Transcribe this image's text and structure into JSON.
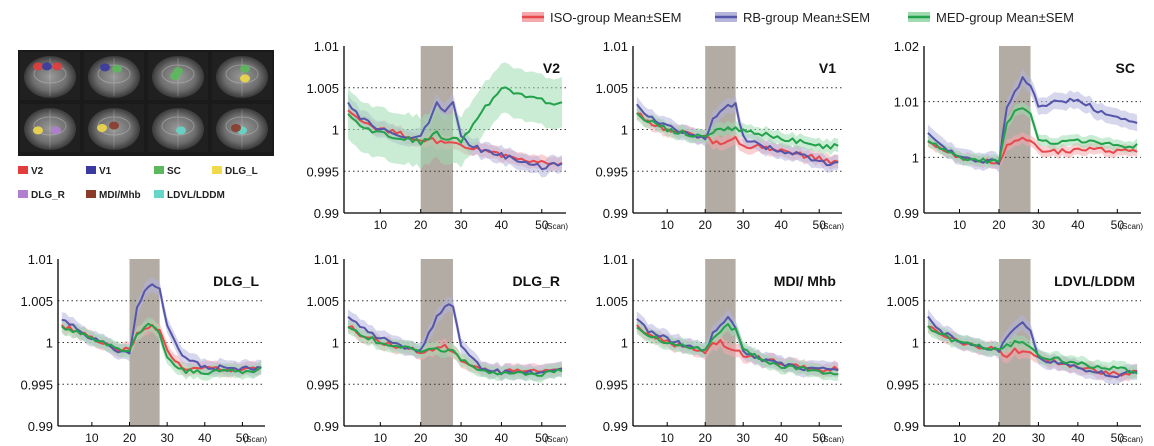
{
  "legend": [
    {
      "label": "ISO-group Mean±SEM",
      "color": "#e8474c",
      "band": "#f5a9ad"
    },
    {
      "label": "RB-group Mean±SEM",
      "color": "#5555aa",
      "band": "#b5b5dc"
    },
    {
      "label": "MED-group Mean±SEM",
      "color": "#22a24a",
      "band": "#9fdab0"
    }
  ],
  "roi_legend": [
    {
      "label": "V2",
      "color": "#e23c3c"
    },
    {
      "label": "V1",
      "color": "#3a3aa0"
    },
    {
      "label": "SC",
      "color": "#5cb85c"
    },
    {
      "label": "DLG_L",
      "color": "#f0d94a"
    },
    {
      "label": "DLG_R",
      "color": "#b07fd0"
    },
    {
      "label": "MDI/Mhb",
      "color": "#8a3b2a"
    },
    {
      "label": "LDVL/LDDM",
      "color": "#66d6c9"
    }
  ],
  "chart_data": [
    {
      "type": "line",
      "title": "V2",
      "xunit": "(Scan)",
      "ylim": [
        0.99,
        1.01
      ],
      "yticks": [
        "0.99",
        "0.995",
        "1",
        "1.005",
        "1.01"
      ],
      "xlim": [
        1,
        56
      ],
      "xticks": [
        10,
        20,
        30,
        40,
        50
      ],
      "stimulus": [
        20,
        28
      ],
      "grid": "dotted-horizontal",
      "x": [
        2,
        5,
        10,
        15,
        20,
        22,
        24,
        26,
        28,
        30,
        35,
        40,
        45,
        50,
        55
      ],
      "series": [
        {
          "name": "ISO-group Mean±SEM",
          "values": [
            1.002,
            1.001,
            1.0,
            0.9995,
            0.9985,
            0.999,
            0.9985,
            0.9985,
            0.9985,
            0.998,
            0.9975,
            0.997,
            0.9965,
            0.996,
            0.9958
          ],
          "sem": 0.0008
        },
        {
          "name": "RB-group Mean±SEM",
          "values": [
            1.003,
            1.0015,
            1.0,
            0.999,
            0.999,
            1.001,
            1.003,
            1.002,
            1.003,
            0.999,
            0.9975,
            0.997,
            0.996,
            0.9955,
            0.996
          ],
          "sem": 0.001
        },
        {
          "name": "MED-group Mean±SEM",
          "values": [
            1.002,
            1.0005,
            0.9995,
            0.999,
            0.9985,
            0.999,
            0.9995,
            0.999,
            0.999,
            0.9985,
            1.002,
            1.005,
            1.004,
            1.0035,
            1.003
          ],
          "sem": 0.003
        }
      ]
    },
    {
      "type": "line",
      "title": "V1",
      "xunit": "(Scan)",
      "ylim": [
        0.99,
        1.01
      ],
      "yticks": [
        "0.99",
        "0.995",
        "1",
        "1.005",
        "1.01"
      ],
      "xlim": [
        1,
        56
      ],
      "xticks": [
        10,
        20,
        30,
        40,
        50
      ],
      "stimulus": [
        20,
        28
      ],
      "grid": "dotted-horizontal",
      "x": [
        2,
        5,
        10,
        15,
        20,
        22,
        24,
        26,
        28,
        30,
        35,
        40,
        45,
        50,
        55
      ],
      "series": [
        {
          "name": "ISO-group Mean±SEM",
          "values": [
            1.002,
            1.001,
            1.0,
            0.9995,
            0.999,
            0.9985,
            0.9985,
            0.9985,
            0.999,
            0.998,
            0.998,
            0.9975,
            0.997,
            0.9965,
            0.996
          ],
          "sem": 0.0008
        },
        {
          "name": "RB-group Mean±SEM",
          "values": [
            1.003,
            1.0015,
            1.0005,
            0.9995,
            0.999,
            1.001,
            1.002,
            1.003,
            1.003,
            0.999,
            0.998,
            0.9975,
            0.997,
            0.996,
            0.9958
          ],
          "sem": 0.0009
        },
        {
          "name": "MED-group Mean±SEM",
          "values": [
            1.002,
            1.001,
            1.0,
            0.9995,
            0.999,
            0.9995,
            1.0,
            1.0,
            1.0,
            1.0,
            0.9995,
            0.999,
            0.9985,
            0.998,
            0.998
          ],
          "sem": 0.0008
        }
      ]
    },
    {
      "type": "line",
      "title": "SC",
      "xunit": "(Scan)",
      "ylim": [
        0.99,
        1.02
      ],
      "yticks": [
        "0.99",
        "1",
        "1.01",
        "1.02"
      ],
      "xlim": [
        1,
        56
      ],
      "xticks": [
        10,
        20,
        30,
        40,
        50
      ],
      "stimulus": [
        20,
        28
      ],
      "grid": "dotted-horizontal",
      "x": [
        2,
        5,
        10,
        15,
        20,
        22,
        24,
        26,
        28,
        30,
        35,
        40,
        45,
        50,
        55
      ],
      "series": [
        {
          "name": "ISO-group Mean±SEM",
          "values": [
            1.003,
            1.0015,
            1.0,
            0.9995,
            0.999,
            1.002,
            1.003,
            1.0035,
            1.003,
            1.0015,
            1.001,
            1.0015,
            1.0015,
            1.001,
            1.001
          ],
          "sem": 0.001
        },
        {
          "name": "RB-group Mean±SEM",
          "values": [
            1.004,
            1.002,
            1.0,
            0.9995,
            0.999,
            1.009,
            1.012,
            1.014,
            1.013,
            1.009,
            1.01,
            1.0105,
            1.0085,
            1.007,
            1.006
          ],
          "sem": 0.0015
        },
        {
          "name": "MED-group Mean±SEM",
          "values": [
            1.003,
            1.0015,
            1.0,
            0.9995,
            0.999,
            1.006,
            1.008,
            1.0085,
            1.008,
            1.003,
            1.0025,
            1.003,
            1.0025,
            1.002,
            1.002
          ],
          "sem": 0.001
        }
      ]
    },
    {
      "type": "line",
      "title": "DLG_L",
      "xunit": "(Scan)",
      "ylim": [
        0.99,
        1.01
      ],
      "yticks": [
        "0.99",
        "0.995",
        "1",
        "1.005",
        "1.01"
      ],
      "xlim": [
        1,
        56
      ],
      "xticks": [
        10,
        20,
        30,
        40,
        50
      ],
      "stimulus": [
        20,
        28
      ],
      "grid": "dotted-horizontal",
      "x": [
        2,
        5,
        10,
        15,
        20,
        22,
        24,
        26,
        28,
        30,
        33,
        35,
        40,
        45,
        50,
        55
      ],
      "series": [
        {
          "name": "ISO-group Mean±SEM",
          "values": [
            1.002,
            1.0015,
            1.0005,
            0.9995,
            0.999,
            1.001,
            1.0015,
            1.002,
            1.0015,
            0.999,
            0.9975,
            0.997,
            0.9968,
            0.9968,
            0.9966,
            0.9968
          ],
          "sem": 0.0008
        },
        {
          "name": "RB-group Mean±SEM",
          "values": [
            1.003,
            1.002,
            1.0005,
            0.9995,
            0.9985,
            1.004,
            1.006,
            1.007,
            1.0065,
            1.002,
            0.999,
            0.998,
            0.997,
            0.997,
            0.9968,
            0.997
          ],
          "sem": 0.0009
        },
        {
          "name": "MED-group Mean±SEM",
          "values": [
            1.002,
            1.0015,
            1.0005,
            0.9995,
            0.999,
            1.001,
            1.002,
            1.002,
            1.001,
            0.9985,
            0.997,
            0.9965,
            0.9965,
            0.9965,
            0.9965,
            0.9968
          ],
          "sem": 0.0008
        }
      ]
    },
    {
      "type": "line",
      "title": "DLG_R",
      "xunit": "(Scan)",
      "ylim": [
        0.99,
        1.01
      ],
      "yticks": [
        "0.99",
        "0.995",
        "1",
        "1.005",
        "1.01"
      ],
      "xlim": [
        1,
        56
      ],
      "xticks": [
        10,
        20,
        30,
        40,
        50
      ],
      "stimulus": [
        20,
        28
      ],
      "grid": "dotted-horizontal",
      "x": [
        2,
        5,
        10,
        15,
        20,
        22,
        24,
        26,
        28,
        30,
        33,
        35,
        40,
        45,
        50,
        55
      ],
      "series": [
        {
          "name": "ISO-group Mean±SEM",
          "values": [
            1.002,
            1.001,
            1.0,
            0.9995,
            0.999,
            0.999,
            0.9992,
            0.9995,
            0.999,
            0.998,
            0.997,
            0.9968,
            0.9965,
            0.9965,
            0.9965,
            0.9967
          ],
          "sem": 0.0008
        },
        {
          "name": "RB-group Mean±SEM",
          "values": [
            1.003,
            1.002,
            1.0005,
            0.9995,
            0.999,
            1.001,
            1.003,
            1.0045,
            1.0045,
            0.9995,
            0.998,
            0.997,
            0.9965,
            0.9965,
            0.9965,
            0.9967
          ],
          "sem": 0.0009
        },
        {
          "name": "MED-group Mean±SEM",
          "values": [
            1.002,
            1.001,
            1.0,
            0.9995,
            0.999,
            0.999,
            0.9992,
            0.9992,
            0.999,
            0.998,
            0.997,
            0.9965,
            0.9962,
            0.9962,
            0.9962,
            0.9966
          ],
          "sem": 0.0008
        }
      ]
    },
    {
      "type": "line",
      "title": "MDI/ Mhb",
      "xunit": "(Scan)",
      "ylim": [
        0.99,
        1.01
      ],
      "yticks": [
        "0.99",
        "0.995",
        "1",
        "1.005",
        "1.01"
      ],
      "xlim": [
        1,
        56
      ],
      "xticks": [
        10,
        20,
        30,
        40,
        50
      ],
      "stimulus": [
        20,
        28
      ],
      "grid": "dotted-horizontal",
      "x": [
        2,
        5,
        10,
        15,
        20,
        22,
        24,
        26,
        28,
        30,
        35,
        40,
        45,
        50,
        55
      ],
      "series": [
        {
          "name": "ISO-group Mean±SEM",
          "values": [
            1.002,
            1.001,
            1.0,
            0.9995,
            0.999,
            1.0,
            1.0,
            0.9995,
            0.999,
            0.9985,
            0.998,
            0.9975,
            0.997,
            0.9968,
            0.9968
          ],
          "sem": 0.0008
        },
        {
          "name": "RB-group Mean±SEM",
          "values": [
            1.003,
            1.0015,
            1.0005,
            0.9995,
            0.999,
            1.001,
            1.002,
            1.003,
            1.002,
            0.999,
            0.998,
            0.9975,
            0.997,
            0.9968,
            0.9965
          ],
          "sem": 0.0009
        },
        {
          "name": "MED-group Mean±SEM",
          "values": [
            1.002,
            1.001,
            1.0,
            0.9995,
            0.999,
            1.0005,
            1.0015,
            1.002,
            1.0015,
            0.999,
            0.998,
            0.9972,
            0.9968,
            0.9965,
            0.996
          ],
          "sem": 0.0008
        }
      ]
    },
    {
      "type": "line",
      "title": "LDVL/LDDM",
      "xunit": "(Scan)",
      "ylim": [
        0.99,
        1.01
      ],
      "yticks": [
        "0.99",
        "0.995",
        "1",
        "1.005",
        "1.01"
      ],
      "xlim": [
        1,
        56
      ],
      "xticks": [
        10,
        20,
        30,
        40,
        50
      ],
      "stimulus": [
        20,
        28
      ],
      "grid": "dotted-horizontal",
      "x": [
        2,
        5,
        10,
        15,
        20,
        22,
        24,
        26,
        28,
        30,
        35,
        40,
        45,
        50,
        55
      ],
      "series": [
        {
          "name": "ISO-group Mean±SEM",
          "values": [
            1.002,
            1.001,
            1.0,
            0.9995,
            0.999,
            0.9985,
            0.999,
            0.999,
            0.999,
            0.998,
            0.9975,
            0.997,
            0.9965,
            0.9962,
            0.9965
          ],
          "sem": 0.0008
        },
        {
          "name": "RB-group Mean±SEM",
          "values": [
            1.003,
            1.0015,
            1.0,
            0.9995,
            0.999,
            1.0005,
            1.0015,
            1.0025,
            1.0015,
            0.998,
            0.9975,
            0.997,
            0.9965,
            0.996,
            0.9965
          ],
          "sem": 0.0009
        },
        {
          "name": "MED-group Mean±SEM",
          "values": [
            1.002,
            1.001,
            1.0,
            0.9995,
            0.999,
            0.9995,
            1.0,
            1.0,
            0.9995,
            0.9985,
            0.998,
            0.9975,
            0.997,
            0.9968,
            0.9965
          ],
          "sem": 0.0008
        }
      ]
    }
  ]
}
